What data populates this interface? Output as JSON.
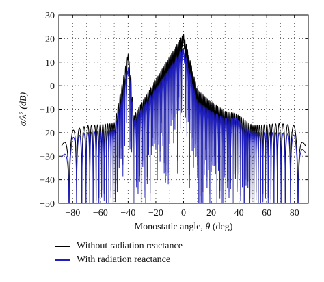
{
  "chart_data": {
    "type": "line",
    "xlabel_main": "Monostatic angle, ",
    "xlabel_symbol": "θ",
    "xlabel_unit": " (deg)",
    "ylabel": "σ/λ² (dB)",
    "xlim": [
      -90,
      90
    ],
    "ylim": [
      -50,
      30
    ],
    "xticks": [
      -80,
      -60,
      -40,
      -20,
      0,
      20,
      40,
      60,
      80
    ],
    "xtick_labels": [
      "−80",
      "−60",
      "−40",
      "−20",
      "0",
      "20",
      "40",
      "60",
      "80"
    ],
    "yticks": [
      -50,
      -40,
      -30,
      -20,
      -10,
      0,
      10,
      20,
      30
    ],
    "ytick_labels": [
      "−50",
      "−40",
      "−30",
      "−20",
      "−10",
      "0",
      "10",
      "20",
      "30"
    ],
    "grid": "dotted",
    "legend_placement": "below",
    "series": [
      {
        "name": "Without radiation reactance",
        "color": "#000000",
        "peaks": [
          {
            "x": 0,
            "y": 22
          },
          {
            "x": -40,
            "y": 13.5
          },
          {
            "x": -38,
            "y": 4
          },
          {
            "x": -36,
            "y": -13
          },
          {
            "x": 38,
            "y": -12
          },
          {
            "x": 10,
            "y": -2
          },
          {
            "x": 20,
            "y": -7
          },
          {
            "x": 30,
            "y": -11
          },
          {
            "x": 50,
            "y": -17
          },
          {
            "x": 70,
            "y": -16
          },
          {
            "x": 80,
            "y": -17
          },
          {
            "x": 85,
            "y": -22
          },
          {
            "x": -50,
            "y": -16
          },
          {
            "x": -70,
            "y": -17
          },
          {
            "x": -80,
            "y": -19
          },
          {
            "x": -85,
            "y": -22
          }
        ],
        "nulls_min": -50
      },
      {
        "name": "With radiation reactance",
        "color": "#1f1fbf",
        "peaks": [
          {
            "x": 0,
            "y": 16
          },
          {
            "x": -40,
            "y": 7.5
          },
          {
            "x": -38,
            "y": 2
          },
          {
            "x": -36,
            "y": -15
          },
          {
            "x": 38,
            "y": -14
          },
          {
            "x": 10,
            "y": -7
          },
          {
            "x": 20,
            "y": -11
          },
          {
            "x": 30,
            "y": -14
          },
          {
            "x": 50,
            "y": -20
          },
          {
            "x": 70,
            "y": -20
          },
          {
            "x": 80,
            "y": -21
          },
          {
            "x": 85,
            "y": -25
          },
          {
            "x": -50,
            "y": -19
          },
          {
            "x": -70,
            "y": -20
          },
          {
            "x": -80,
            "y": -22
          },
          {
            "x": -85,
            "y": -27
          }
        ],
        "nulls_min": -50
      }
    ]
  }
}
